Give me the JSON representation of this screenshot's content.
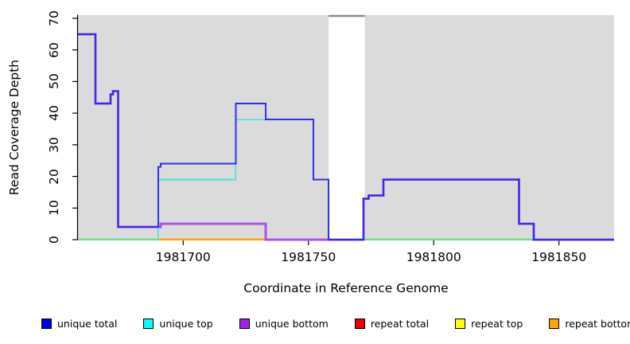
{
  "figure": {
    "xlabel": "Coordinate in Reference Genome",
    "ylabel": "Read Coverage Depth",
    "background": "#FFFFFF"
  },
  "chart_data": {
    "type": "line",
    "subtype": "step-coverage",
    "title": "",
    "xlabel": "Coordinate in Reference Genome",
    "ylabel": "Read Coverage Depth",
    "xlim": [
      1981658,
      1981872
    ],
    "ylim": [
      0,
      70
    ],
    "x_ticks": [
      1981700,
      1981750,
      1981800,
      1981850
    ],
    "y_ticks": [
      0,
      10,
      20,
      30,
      40,
      50,
      60,
      70
    ],
    "grid": false,
    "legend_position": "bottom",
    "plot_bg": "#DBDBDB",
    "gap_region": {
      "x1": 1981758,
      "x2": 1981772.5,
      "fill": "#FFFFFF",
      "top_border_color": "#8C8C8C"
    },
    "series": [
      {
        "name": "unique total",
        "color": "#3030E8",
        "width": 2,
        "points": [
          [
            1981658,
            65
          ],
          [
            1981665,
            65
          ],
          [
            1981665,
            43
          ],
          [
            1981671,
            43
          ],
          [
            1981671,
            46
          ],
          [
            1981672,
            46
          ],
          [
            1981672,
            47
          ],
          [
            1981674,
            47
          ],
          [
            1981674,
            4
          ],
          [
            1981690,
            4
          ],
          [
            1981690,
            23
          ],
          [
            1981691,
            23
          ],
          [
            1981691,
            24
          ],
          [
            1981721,
            24
          ],
          [
            1981721,
            43
          ],
          [
            1981733,
            43
          ],
          [
            1981733,
            38
          ],
          [
            1981752,
            38
          ],
          [
            1981752,
            19
          ],
          [
            1981758,
            19
          ],
          [
            1981758,
            0
          ],
          [
            1981772,
            0
          ],
          [
            1981772,
            13
          ],
          [
            1981774,
            13
          ],
          [
            1981774,
            14
          ],
          [
            1981780,
            14
          ],
          [
            1981780,
            19
          ],
          [
            1981834,
            19
          ],
          [
            1981834,
            5
          ],
          [
            1981840,
            5
          ],
          [
            1981840,
            0
          ],
          [
            1981872,
            0
          ]
        ]
      },
      {
        "name": "unique top",
        "color": "#45E2E2",
        "width": 1.6,
        "points": [
          [
            1981658,
            0
          ],
          [
            1981690,
            0
          ],
          [
            1981690,
            19
          ],
          [
            1981721,
            19
          ],
          [
            1981721,
            38
          ],
          [
            1981752,
            38
          ],
          [
            1981752,
            19
          ],
          [
            1981758,
            19
          ],
          [
            1981758,
            0
          ],
          [
            1981872,
            0
          ]
        ]
      },
      {
        "name": "unique bottom",
        "color": "#AC50E8",
        "width": 3,
        "points": [
          [
            1981658,
            65
          ],
          [
            1981665,
            65
          ],
          [
            1981665,
            43
          ],
          [
            1981671,
            43
          ],
          [
            1981671,
            46
          ],
          [
            1981672,
            46
          ],
          [
            1981672,
            47
          ],
          [
            1981674,
            47
          ],
          [
            1981674,
            4
          ],
          [
            1981691,
            4
          ],
          [
            1981691,
            5
          ],
          [
            1981733,
            5
          ],
          [
            1981733,
            0
          ],
          [
            1981772,
            0
          ],
          [
            1981772,
            13
          ],
          [
            1981774,
            13
          ],
          [
            1981774,
            14
          ],
          [
            1981780,
            14
          ],
          [
            1981780,
            19
          ],
          [
            1981834,
            19
          ],
          [
            1981834,
            5
          ],
          [
            1981840,
            5
          ],
          [
            1981840,
            0
          ],
          [
            1981872,
            0
          ]
        ]
      },
      {
        "name": "repeat total",
        "color": "#E8436B",
        "width": 2,
        "points": [
          [
            1981658,
            0
          ],
          [
            1981758,
            0
          ]
        ]
      },
      {
        "name": "repeat top",
        "color": "#FFFF00",
        "width": 2,
        "points": [
          [
            1981658,
            0
          ],
          [
            1981840,
            0
          ]
        ]
      },
      {
        "name": "repeat bottom",
        "color": "#FFA500",
        "width": 2,
        "points": [
          [
            1981690,
            0
          ],
          [
            1981733,
            0
          ]
        ]
      }
    ],
    "zero_line_segments": [
      {
        "x1": 1981658,
        "x2": 1981690,
        "color": "#77DD77"
      },
      {
        "x1": 1981690,
        "x2": 1981733,
        "color": "#FFA500"
      },
      {
        "x1": 1981733,
        "x2": 1981758,
        "color": "#E8436B"
      },
      {
        "x1": 1981772,
        "x2": 1981840,
        "color": "#77DD77"
      }
    ],
    "render_order": [
      "repeat total",
      "repeat top",
      "repeat bottom",
      "unique top",
      "zero_segments",
      "unique bottom",
      "unique total"
    ]
  },
  "legend": {
    "items": [
      {
        "label": "unique total",
        "color": "#0000EE"
      },
      {
        "label": "unique top",
        "color": "#00FFFF"
      },
      {
        "label": "unique bottom",
        "color": "#A020F0"
      },
      {
        "label": "repeat total",
        "color": "#EE0000"
      },
      {
        "label": "repeat top",
        "color": "#FFFF00"
      },
      {
        "label": "repeat bottom",
        "color": "#FFA500"
      }
    ]
  }
}
